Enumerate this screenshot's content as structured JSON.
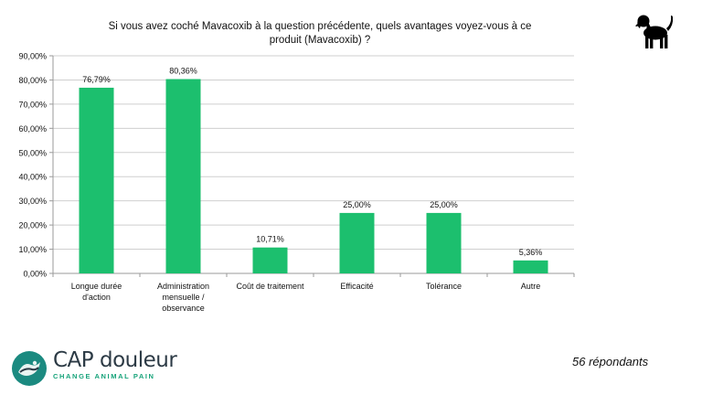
{
  "header": {
    "title_line1": "Si vous avez coché Mavacoxib  à la question précédente, quels avantages voyez-vous à ce",
    "title_line2": "produit (Mavacoxib) ?"
  },
  "footer": {
    "brand_name": "CAP douleur",
    "brand_tagline": "CHANGE ANIMAL PAIN",
    "respondents": "56 répondants"
  },
  "icons": {
    "top_right": "dog-silhouette-icon",
    "logo": "capdouleur-logo-icon"
  },
  "colors": {
    "bar": "#1cbf6e",
    "grid": "#cfcfcf",
    "logo_teal": "#1b8a80",
    "logo_dark": "#2c3a45"
  },
  "chart_data": {
    "type": "bar",
    "categories": [
      [
        "Longue durée",
        "d'action"
      ],
      [
        "Administration",
        "mensuelle /",
        "observance"
      ],
      [
        "Coût de traitement"
      ],
      [
        "Efficacité"
      ],
      [
        "Tolérance"
      ],
      [
        "Autre"
      ]
    ],
    "values": [
      76.79,
      80.36,
      10.71,
      25.0,
      25.0,
      5.36
    ],
    "value_labels": [
      "76,79%",
      "80,36%",
      "10,71%",
      "25,00%",
      "25,00%",
      "5,36%"
    ],
    "y_ticks": [
      "0,00%",
      "10,00%",
      "20,00%",
      "30,00%",
      "40,00%",
      "50,00%",
      "60,00%",
      "70,00%",
      "80,00%",
      "90,00%"
    ],
    "ylim": [
      0,
      90
    ],
    "grid": true,
    "legend": false,
    "xlabel": "",
    "ylabel": ""
  }
}
